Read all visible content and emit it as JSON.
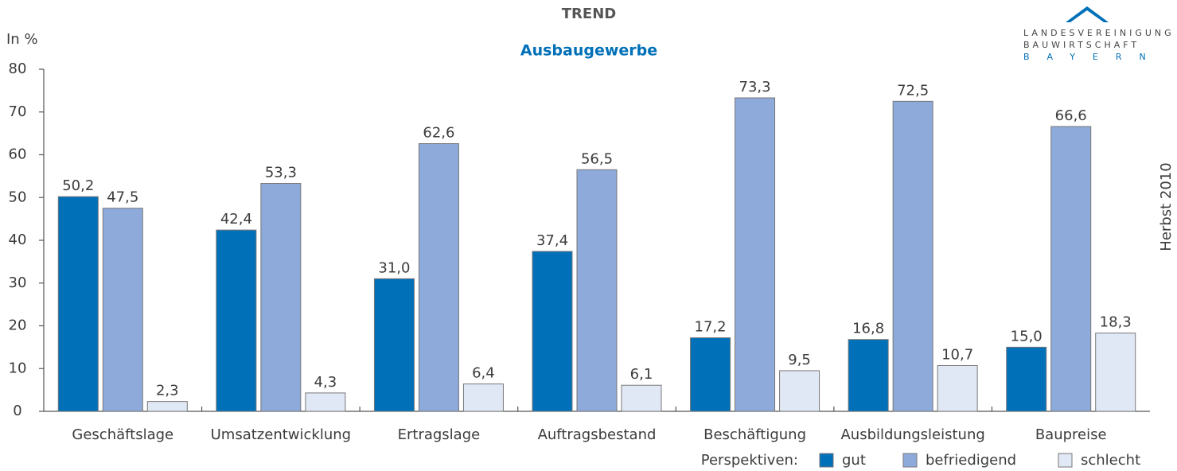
{
  "chart_data": {
    "type": "bar",
    "title": "TREND",
    "subtitle": "Ausbaugewerbe",
    "y_label": "In %",
    "side_label": "Herbst 2010",
    "legend_title": "Perspektiven:",
    "logo_text": [
      "LANDESVEREINIGUNG",
      "BAUWIRTSCHAFT",
      "BAYERN"
    ],
    "categories": [
      "Geschäftslage",
      "Umsatzentwicklung",
      "Ertragslage",
      "Auftragsbestand",
      "Beschäftigung",
      "Ausbildungsleistung",
      "Baupreise"
    ],
    "series": [
      {
        "name": "gut",
        "color": "#0070b8",
        "values": [
          50.2,
          42.4,
          31.0,
          37.4,
          17.2,
          16.8,
          15.0
        ],
        "value_labels": [
          "50,2",
          "42,4",
          "31,0",
          "37,4",
          "17,2",
          "16,8",
          "15,0"
        ]
      },
      {
        "name": "befriedigend",
        "color": "#8eaadb",
        "values": [
          47.5,
          53.3,
          62.6,
          56.5,
          73.3,
          72.5,
          66.6
        ],
        "value_labels": [
          "47,5",
          "53,3",
          "62,6",
          "56,5",
          "73,3",
          "72,5",
          "66,6"
        ]
      },
      {
        "name": "schlecht",
        "color": "#e1e8f5",
        "values": [
          2.3,
          4.3,
          6.4,
          6.1,
          9.5,
          10.7,
          18.3
        ],
        "value_labels": [
          "2,3",
          "4,3",
          "6,4",
          "6,1",
          "9,5",
          "10,7",
          "18,3"
        ]
      }
    ],
    "ylim": [
      0,
      80
    ],
    "yticks": [
      0,
      10,
      20,
      30,
      40,
      50,
      60,
      70,
      80
    ],
    "grid": false,
    "legend": "bottom-right"
  }
}
